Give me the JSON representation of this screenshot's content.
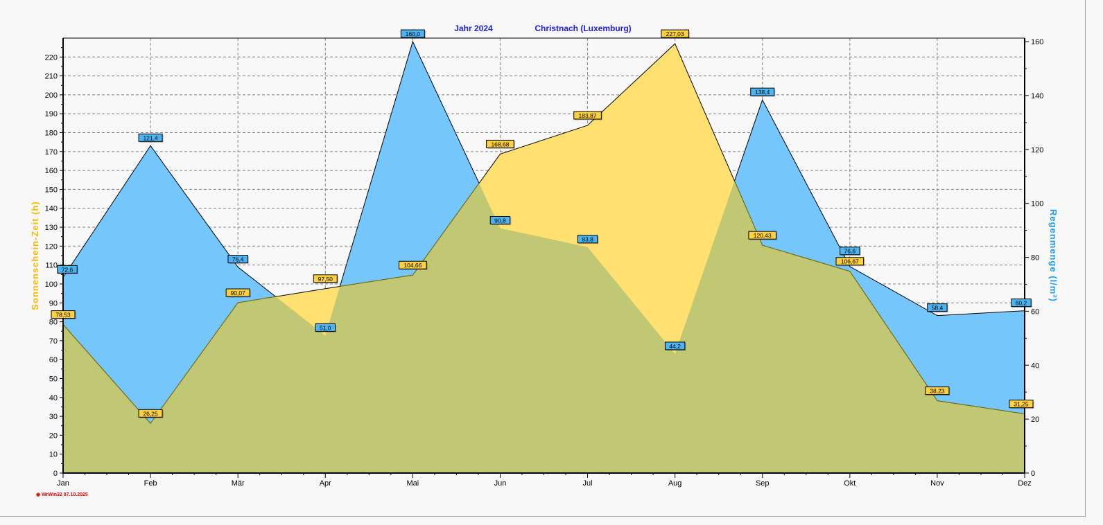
{
  "chart_data": {
    "type": "area",
    "title_year": "Jahr  2024",
    "title_station": "Christnach (Luxemburg)",
    "categories": [
      "Jan",
      "Feb",
      "Mär",
      "Apr",
      "Mai",
      "Jun",
      "Jul",
      "Aug",
      "Sep",
      "Okt",
      "Nov",
      "Dez"
    ],
    "series": [
      {
        "name": "Sonnenschein-Zeit",
        "axis": "left",
        "color": "#ffe070",
        "values": [
          78.53,
          26.25,
          90.07,
          97.5,
          104.66,
          168.68,
          183.87,
          227.03,
          120.43,
          106.67,
          38.23,
          31.25
        ],
        "labels": [
          "78,53",
          "26,25",
          "90,07",
          "97,50",
          "104,66",
          "168,68",
          "183,87",
          "227,03",
          "120,43",
          "106,67",
          "38,23",
          "31,25"
        ]
      },
      {
        "name": "Regenmenge",
        "axis": "right",
        "color": "#74c6fc",
        "values": [
          72.6,
          121.4,
          76.4,
          51.0,
          160.0,
          90.8,
          83.8,
          44.2,
          138.4,
          76.6,
          58.4,
          60.2
        ],
        "labels": [
          "72,6",
          "121,4",
          "76,4",
          "51,0",
          "160,0",
          "90,8",
          "83,8",
          "44,2",
          "138,4",
          "76,6",
          "58,4",
          "60,2"
        ]
      }
    ],
    "ylabel": "Sonnenschein-Zeit  (h)",
    "y2label": "Regenmenge  (l/m²)",
    "ylim": [
      0,
      230
    ],
    "y2lim": [
      0,
      161.3
    ],
    "yticks": [
      0,
      10,
      20,
      30,
      40,
      50,
      60,
      70,
      80,
      90,
      100,
      110,
      120,
      130,
      140,
      150,
      160,
      170,
      180,
      190,
      200,
      210,
      220
    ],
    "y2ticks": [
      0,
      20,
      40,
      60,
      80,
      100,
      120,
      140,
      160
    ],
    "overlap_color": "#c1c874",
    "grid": true,
    "footer": "WrWin32  07.10.2025"
  }
}
